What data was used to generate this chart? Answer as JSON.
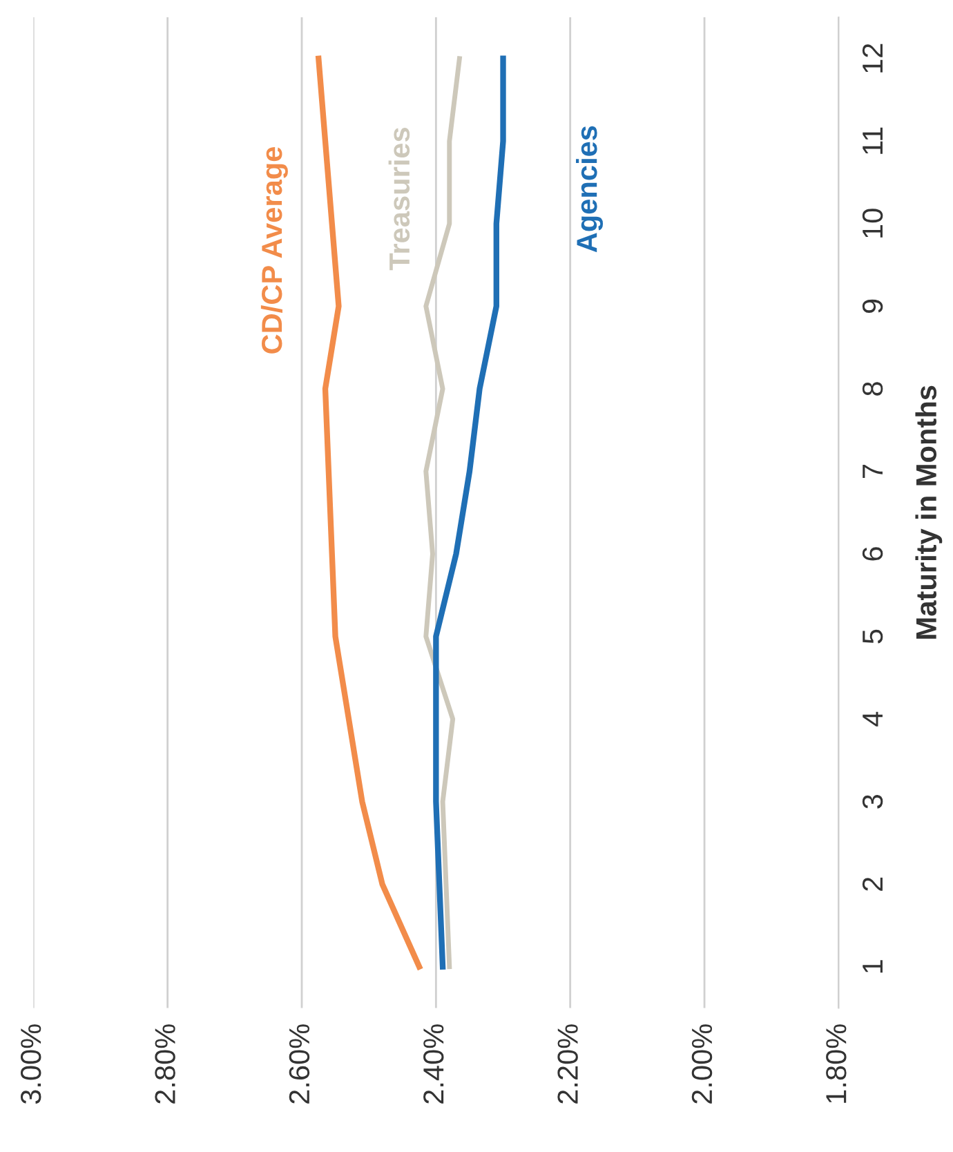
{
  "chart_data": {
    "type": "line",
    "orientation": "horizontal",
    "ylabel": "Maturity in Months",
    "categories": [
      "12",
      "11",
      "10",
      "9",
      "8",
      "7",
      "6",
      "5",
      "4",
      "3",
      "2",
      "1"
    ],
    "series": [
      {
        "name": "CD/CP Average",
        "color": "#f28c4a",
        "values": [
          2.575,
          2.565,
          2.555,
          2.545,
          2.565,
          2.56,
          2.555,
          2.55,
          2.53,
          2.51,
          2.48,
          2.425
        ]
      },
      {
        "name": "Treasuries",
        "color": "#cdc8ba",
        "values": [
          2.365,
          2.38,
          2.38,
          2.415,
          2.39,
          2.415,
          2.405,
          2.415,
          2.375,
          2.39,
          2.385,
          2.38
        ]
      },
      {
        "name": "Agencies",
        "color": "#1f6fb5",
        "values": [
          2.3,
          2.3,
          2.31,
          2.31,
          2.335,
          2.35,
          2.37,
          2.4,
          2.4,
          2.4,
          2.395,
          2.39
        ]
      }
    ],
    "xlim": [
      3.0,
      1.8
    ],
    "xticks": [
      {
        "value": 3.0,
        "label": "3.00%"
      },
      {
        "value": 2.8,
        "label": "2.80%"
      },
      {
        "value": 2.6,
        "label": "2.60%"
      },
      {
        "value": 2.4,
        "label": "2.40%"
      },
      {
        "value": 2.2,
        "label": "2.20%"
      },
      {
        "value": 2.0,
        "label": "2.00%"
      },
      {
        "value": 1.8,
        "label": "1.80%"
      }
    ],
    "grid": "x",
    "marker": "none",
    "line_style": "solid",
    "legend": false
  }
}
